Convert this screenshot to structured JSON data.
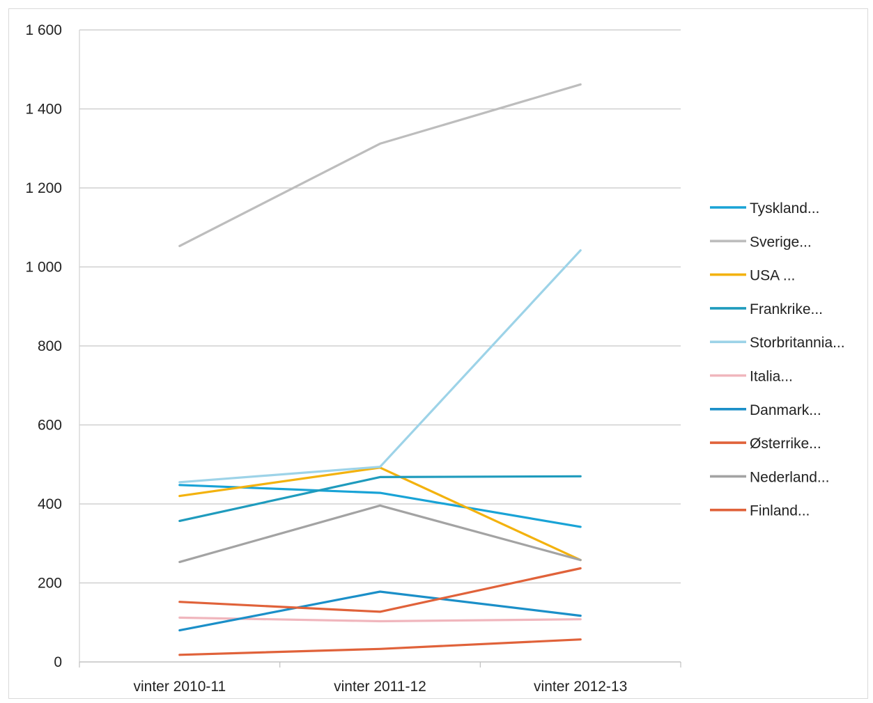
{
  "chart_data": {
    "type": "line",
    "title": "",
    "xlabel": "",
    "ylabel": "",
    "categories": [
      "vinter 2010-11",
      "vinter 2011-12",
      "vinter 2012-13"
    ],
    "ylim": [
      0,
      1600
    ],
    "yticks": [
      0,
      200,
      400,
      600,
      800,
      1000,
      1200,
      1400,
      1600
    ],
    "ytick_labels": [
      "0",
      "200",
      "400",
      "600",
      "800",
      "1 000",
      "1 200",
      "1 400",
      "1 600"
    ],
    "grid": true,
    "legend_position": "right",
    "series": [
      {
        "name": "Tyskland...",
        "color": "#19a3d6",
        "values": [
          448,
          428,
          342
        ]
      },
      {
        "name": "Sverige...",
        "color": "#bdbdbd",
        "values": [
          1053,
          1312,
          1462
        ]
      },
      {
        "name": "USA ...",
        "color": "#f3b20e",
        "values": [
          420,
          492,
          258
        ]
      },
      {
        "name": "Frankrike...",
        "color": "#1f9bbd",
        "values": [
          357,
          468,
          470
        ]
      },
      {
        "name": "Storbritannia...",
        "color": "#9dd3e8",
        "values": [
          455,
          494,
          1042
        ]
      },
      {
        "name": "Italia...",
        "color": "#f0b6bd",
        "values": [
          112,
          103,
          108
        ]
      },
      {
        "name": "Danmark...",
        "color": "#1b8fc8",
        "values": [
          80,
          178,
          117
        ]
      },
      {
        "name": "Østerrike...",
        "color": "#e0623a",
        "values": [
          152,
          127,
          237
        ]
      },
      {
        "name": "Nederland...",
        "color": "#a3a3a3",
        "values": [
          253,
          396,
          258
        ]
      },
      {
        "name": "Finland...",
        "color": "#e0623a",
        "values": [
          18,
          33,
          57
        ]
      }
    ]
  }
}
